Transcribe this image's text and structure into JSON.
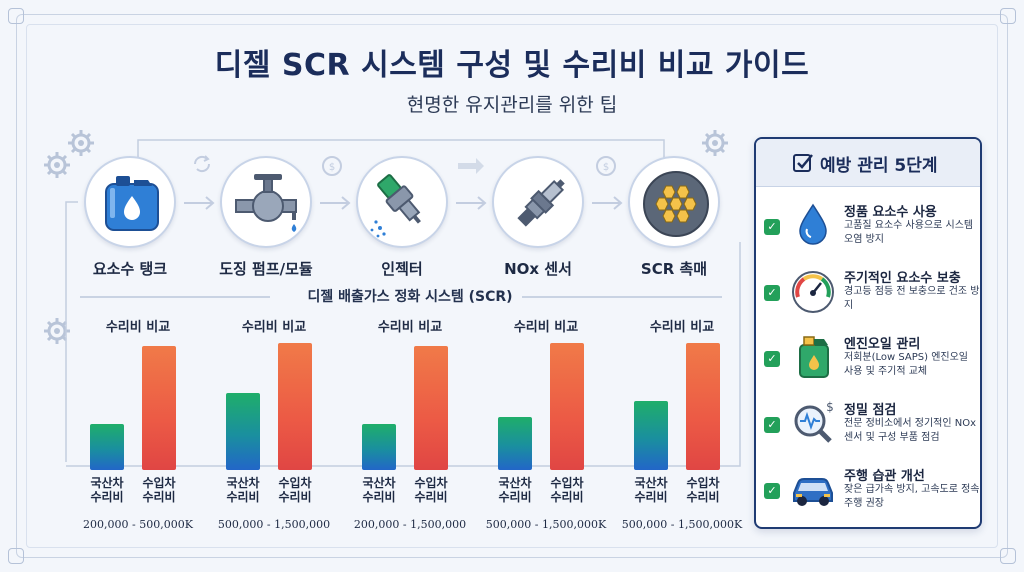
{
  "header": {
    "title": "디젤 SCR 시스템 구성 및 수리비 비교 가이드",
    "subtitle": "현명한 유지관리를 위한 팁"
  },
  "components": [
    {
      "label": "요소수 탱크",
      "icon": "urea-tank-icon"
    },
    {
      "label": "도징 펌프/모듈",
      "icon": "dosing-pump-icon"
    },
    {
      "label": "인젝터",
      "icon": "injector-icon"
    },
    {
      "label": "NOx 센서",
      "icon": "nox-sensor-icon"
    },
    {
      "label": "SCR 촉매",
      "icon": "scr-catalyst-icon"
    }
  ],
  "section_label": "디젤 배출가스 정화 시스템 (SCR)",
  "chart_data": [
    {
      "type": "bar",
      "title": "수리비 비교",
      "categories": [
        "국산차\n수리비",
        "수입차\n수리비"
      ],
      "values": [
        0.35,
        0.94
      ],
      "range_label": "200,000 - 500,000K"
    },
    {
      "type": "bar",
      "title": "수리비 비교",
      "categories": [
        "국산차\n수리비",
        "수입차\n수리비"
      ],
      "values": [
        0.58,
        0.96
      ],
      "range_label": "500,000 - 1,500,000"
    },
    {
      "type": "bar",
      "title": "수리비 비교",
      "categories": [
        "국산차\n수리비",
        "수입차\n수리비"
      ],
      "values": [
        0.35,
        0.94
      ],
      "range_label": "200,000 - 1,500,000"
    },
    {
      "type": "bar",
      "title": "수리비 비교",
      "categories": [
        "국산차\n수리비",
        "수입차\n수리비"
      ],
      "values": [
        0.4,
        0.96
      ],
      "range_label": "500,000 - 1,500,000K"
    },
    {
      "type": "bar",
      "title": "수리비 비교",
      "categories": [
        "국산차\n수리비",
        "수입차\n수리비"
      ],
      "values": [
        0.52,
        0.96
      ],
      "range_label": "500,000 - 1,500,000K"
    }
  ],
  "panel": {
    "title": "예방 관리 5단계",
    "steps": [
      {
        "title": "정품 요소수 사용",
        "desc": "고품질 요소수 사용으로 시스템 오염 방지",
        "icon": "water-drop-icon"
      },
      {
        "title": "주기적인 요소수 보충",
        "desc": "경고등 점등 전 보충으로 건조 방지",
        "icon": "gauge-icon"
      },
      {
        "title": "엔진오일 관리",
        "desc": "저회분(Low SAPS) 엔진오일 사용 및 주기적 교체",
        "icon": "oil-can-icon"
      },
      {
        "title": "정밀 점검",
        "desc": "전문 정비소에서 정기적인 NOx 센서 및 구성 부품 점검",
        "icon": "inspection-icon"
      },
      {
        "title": "주행 습관 개선",
        "desc": "잦은 급가속 방지, 고속도로 정속 주행 권장",
        "icon": "car-icon"
      }
    ]
  },
  "colors": {
    "domestic_bar": "#1fae6a",
    "import_bar": "#ec5a45",
    "check": "#23a05a",
    "title": "#1b2d5b"
  }
}
